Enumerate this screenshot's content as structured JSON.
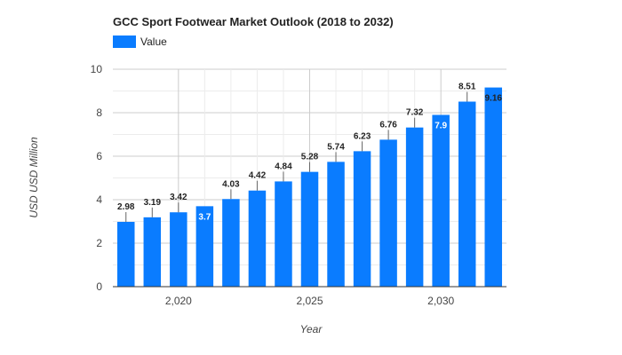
{
  "chart_data": {
    "type": "bar",
    "title": "GCC Sport Footwear Market Outlook (2018 to 2032)",
    "xlabel": "Year",
    "ylabel": "USD USD Million",
    "legend": {
      "entries": [
        "Value"
      ],
      "placement": "top-left"
    },
    "grid": true,
    "colors": {
      "bar": "#0a7cff"
    },
    "ylim": [
      0,
      10
    ],
    "yticks": [
      "0",
      "2",
      "4",
      "6",
      "8",
      "10"
    ],
    "xticks": [
      "2,020",
      "2,025",
      "2,030"
    ],
    "x": [
      2018,
      2019,
      2020,
      2021,
      2022,
      2023,
      2024,
      2025,
      2026,
      2027,
      2028,
      2029,
      2030,
      2031,
      2032
    ],
    "series": [
      {
        "name": "Value",
        "values": [
          2.98,
          3.19,
          3.42,
          3.7,
          4.03,
          4.42,
          4.84,
          5.28,
          5.74,
          6.23,
          6.76,
          7.32,
          7.9,
          8.51,
          9.16
        ],
        "labels": [
          "2.98",
          "3.19",
          "3.42",
          "3.7",
          "4.03",
          "4.42",
          "4.84",
          "5.28",
          "5.74",
          "6.23",
          "6.76",
          "7.32",
          "7.9",
          "8.51",
          "9.16"
        ]
      }
    ]
  }
}
